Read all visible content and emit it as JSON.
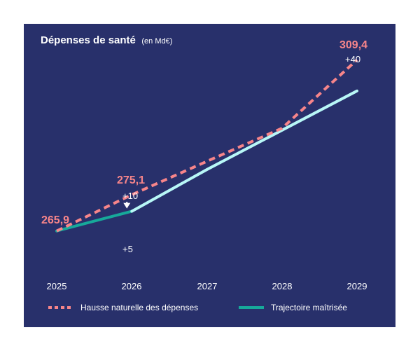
{
  "colors": {
    "background": "#28306b",
    "natural": "#f7858a",
    "controlled_first": "#17a99a",
    "controlled_rest": "#b8f7f7",
    "text": "#ffffff"
  },
  "chart_data": {
    "type": "line",
    "title": "Dépenses de santé",
    "unit": "(en Md€)",
    "x": [
      "2025",
      "2026",
      "2027",
      "2028",
      "2029"
    ],
    "ylim": [
      258,
      315
    ],
    "grid": false,
    "legend_position": "bottom",
    "series": [
      {
        "name": "Hausse naturelle des dépenses",
        "style": "dashed",
        "color": "#f7858a",
        "values": [
          265.9,
          275.1,
          283.6,
          292.0,
          309.4
        ]
      },
      {
        "name": "Trajectoire maîtrisée",
        "style": "solid",
        "color": "#17a99a",
        "values": [
          265.9,
          270.9,
          281.5,
          291.5,
          301.5
        ]
      }
    ],
    "annotations": {
      "start_value": "265,9",
      "mid_value": "275,1",
      "mid_delta": "+10",
      "controlled_delta": "+5",
      "end_value": "309,4",
      "end_delta": "+40"
    }
  }
}
